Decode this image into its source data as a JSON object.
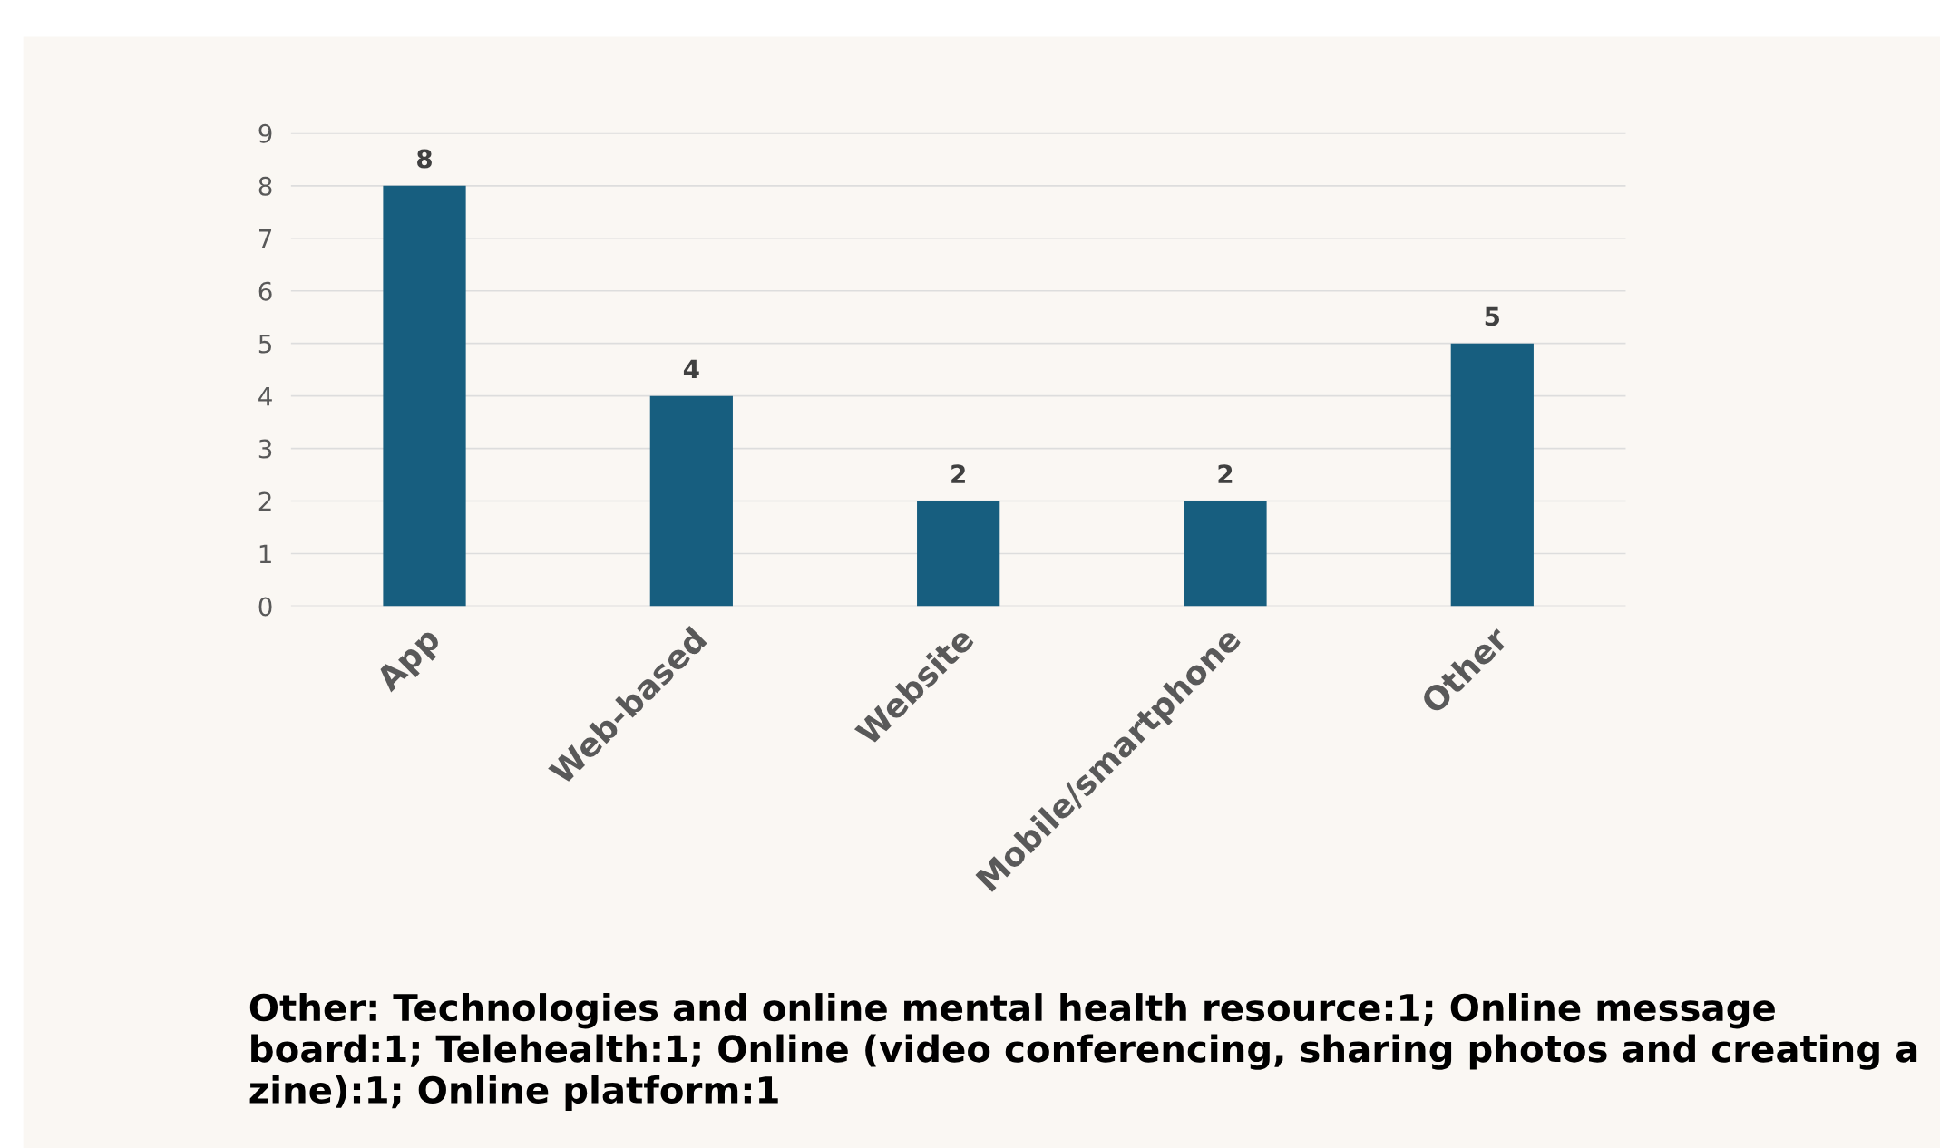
{
  "chart_data": {
    "type": "bar",
    "categories": [
      "App",
      "Web-based",
      "Website",
      "Mobile/smartphone",
      "Other"
    ],
    "values": [
      8,
      4,
      2,
      2,
      5
    ],
    "color": "#175e7f",
    "ylim": [
      0,
      9
    ],
    "yticks": [
      0,
      1,
      2,
      3,
      4,
      5,
      6,
      7,
      8,
      9
    ],
    "grid": "y",
    "data_labels": true,
    "annotations": [
      "Other: Technologies and online mental health resource:1; Online message board:1; Telehealth:1; Online (video conferencing, sharing photos and creating a zine):1; Online platform:1"
    ]
  }
}
